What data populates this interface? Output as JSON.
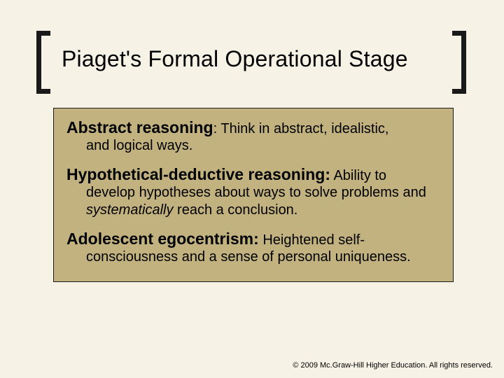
{
  "colors": {
    "slide_bg": "#f6f2e6",
    "bracket": "#1a1a1a",
    "box_bg": "#c2b280",
    "box_border": "#1a1a1a",
    "text": "#000000"
  },
  "title": "Piaget's Formal Operational Stage",
  "entries": [
    {
      "term": "Abstract reasoning",
      "sep": ": ",
      "def_head": "Think in abstract, idealistic,",
      "def_tail": "and logical ways."
    },
    {
      "term": "Hypothetical-deductive reasoning:",
      "sep": " ",
      "def_head": "Ability to",
      "def_tail_pre": "develop hypotheses about ways to solve problems and ",
      "def_tail_ital": "systematically",
      "def_tail_post": " reach a conclusion."
    },
    {
      "term": "Adolescent egocentrism:",
      "sep": " ",
      "def_head": "Heightened self-",
      "def_tail": "consciousness and a sense of personal uniqueness."
    }
  ],
  "copyright": "© 2009 Mc.Graw-Hill Higher Education. All rights reserved."
}
